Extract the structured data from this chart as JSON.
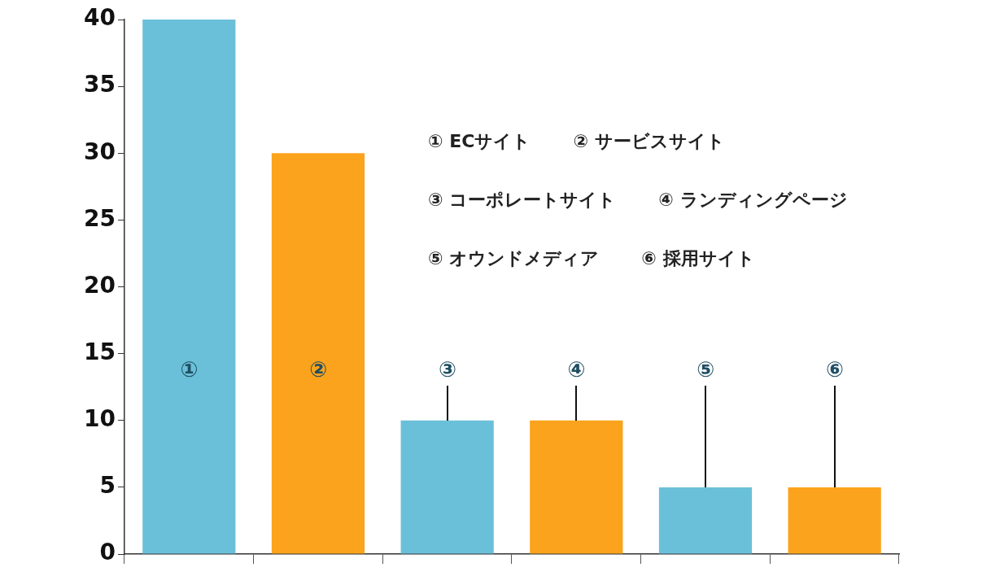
{
  "chart_data": {
    "type": "bar",
    "categories": [
      "①",
      "②",
      "③",
      "④",
      "⑤",
      "⑥"
    ],
    "values": [
      40,
      30,
      10,
      10,
      5,
      5
    ],
    "colors": [
      "#6bc0d9",
      "#fba31c",
      "#6bc0d9",
      "#fba31c",
      "#6bc0d9",
      "#fba31c"
    ],
    "ylim": [
      0,
      40
    ],
    "yticks": [
      0,
      5,
      10,
      15,
      20,
      25,
      30,
      35,
      40
    ],
    "annotations": [
      "① ECサイト",
      "② サービスサイト",
      "③ コーポレートサイト",
      "④ ランディングページ",
      "⑤ オウンドメディア",
      "⑥ 採用サイト"
    ]
  }
}
